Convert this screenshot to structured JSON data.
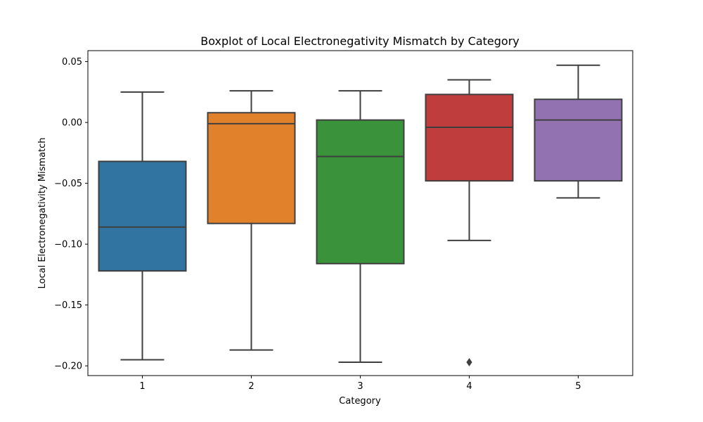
{
  "chart_data": {
    "type": "boxplot",
    "title": "Boxplot of Local Electronegativity Mismatch by Category",
    "xlabel": "Category",
    "ylabel": "Local Electronegativity Mismatch",
    "categories": [
      "1",
      "2",
      "3",
      "4",
      "5"
    ],
    "ylim": [
      -0.208,
      0.059
    ],
    "yticks": [
      0.05,
      0.0,
      -0.05,
      -0.1,
      -0.15,
      -0.2
    ],
    "ytick_labels": [
      "0.05",
      "0.00",
      "−0.05",
      "−0.10",
      "−0.15",
      "−0.20"
    ],
    "grid": false,
    "boxes": [
      {
        "category": "1",
        "whisker_low": -0.195,
        "q1": -0.122,
        "median": -0.086,
        "q3": -0.032,
        "whisker_high": 0.025,
        "outliers": [],
        "color": "#3274a1"
      },
      {
        "category": "2",
        "whisker_low": -0.187,
        "q1": -0.083,
        "median": -0.001,
        "q3": 0.008,
        "whisker_high": 0.026,
        "outliers": [],
        "color": "#e1812c"
      },
      {
        "category": "3",
        "whisker_low": -0.197,
        "q1": -0.116,
        "median": -0.028,
        "q3": 0.002,
        "whisker_high": 0.026,
        "outliers": [],
        "color": "#3a923a"
      },
      {
        "category": "4",
        "whisker_low": -0.097,
        "q1": -0.048,
        "median": -0.004,
        "q3": 0.023,
        "whisker_high": 0.035,
        "outliers": [
          -0.197
        ],
        "color": "#c03d3e"
      },
      {
        "category": "5",
        "whisker_low": -0.062,
        "q1": -0.048,
        "median": 0.002,
        "q3": 0.019,
        "whisker_high": 0.047,
        "outliers": [],
        "color": "#9372b2"
      }
    ]
  }
}
